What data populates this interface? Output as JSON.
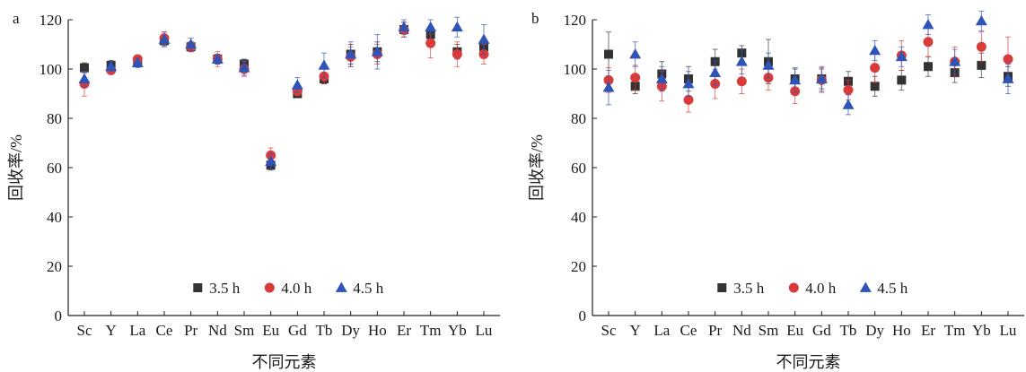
{
  "chart_data": [
    {
      "panel_label": "a",
      "type": "scatter",
      "title": "",
      "xlabel": "不同元素",
      "ylabel": "回收率/%",
      "ylim": [
        0,
        120
      ],
      "yticks": [
        0,
        20,
        40,
        60,
        80,
        100,
        120
      ],
      "legend_position": "bottom-center",
      "grid": false,
      "categories": [
        "Sc",
        "Y",
        "La",
        "Ce",
        "Pr",
        "Nd",
        "Sm",
        "Eu",
        "Gd",
        "Tb",
        "Dy",
        "Ho",
        "Er",
        "Tm",
        "Yb",
        "Lu"
      ],
      "series": [
        {
          "name": "3.5 h",
          "marker": "square",
          "color": "#333333",
          "values": [
            100.5,
            101.5,
            103,
            111.5,
            109,
            104,
            102,
            61,
            90,
            96,
            106,
            107,
            116,
            114,
            107,
            109
          ],
          "errors": [
            2,
            2,
            1.5,
            2,
            2,
            2,
            2,
            2,
            1.5,
            2,
            4,
            4,
            3,
            3,
            3,
            3
          ]
        },
        {
          "name": "4.0 h",
          "marker": "circle",
          "color": "#d93a3a",
          "values": [
            94,
            99.5,
            104,
            112.5,
            109,
            104,
            100,
            65,
            91,
            97,
            105,
            106,
            116,
            110.5,
            106,
            106
          ],
          "errors": [
            5,
            1.5,
            1.5,
            2.5,
            2,
            3,
            3,
            3,
            1.5,
            3,
            4,
            4,
            3,
            6,
            5,
            4
          ]
        },
        {
          "name": "4.5 h",
          "marker": "triangle",
          "color": "#2f54b8",
          "values": [
            96,
            101,
            102.5,
            112,
            110,
            104,
            100.5,
            62.5,
            93.5,
            101.5,
            106,
            107,
            117,
            117,
            117,
            112
          ],
          "errors": [
            3,
            2,
            2,
            3,
            2.5,
            2,
            3,
            3,
            3,
            5,
            5,
            7,
            3,
            3,
            4,
            6
          ]
        }
      ]
    },
    {
      "panel_label": "b",
      "type": "scatter",
      "title": "",
      "xlabel": "不同元素",
      "ylabel": "回收率/%",
      "ylim": [
        0,
        120
      ],
      "yticks": [
        0,
        20,
        40,
        60,
        80,
        100,
        120
      ],
      "legend_position": "bottom-center",
      "grid": false,
      "categories": [
        "Sc",
        "Y",
        "La",
        "Ce",
        "Pr",
        "Nd",
        "Sm",
        "Eu",
        "Gd",
        "Tb",
        "Dy",
        "Ho",
        "Er",
        "Tm",
        "Yb",
        "Lu"
      ],
      "series": [
        {
          "name": "3.5 h",
          "marker": "square",
          "color": "#333333",
          "values": [
            106,
            93,
            98,
            96,
            103,
            106.5,
            103,
            96,
            96,
            95,
            93,
            95.5,
            101,
            98.5,
            101.5,
            97
          ],
          "errors": [
            9,
            3,
            5,
            5,
            5,
            3,
            9,
            4,
            4,
            4,
            4,
            4,
            4,
            4,
            5,
            4
          ]
        },
        {
          "name": "4.0 h",
          "marker": "circle",
          "color": "#d93a3a",
          "values": [
            95.5,
            96.5,
            93,
            87.5,
            94,
            95,
            96.5,
            91,
            95.5,
            91.5,
            100.5,
            105.5,
            111,
            103,
            109,
            104
          ],
          "errors": [
            5,
            5,
            6,
            5,
            6,
            5,
            5,
            5,
            5,
            4,
            6,
            6,
            6,
            6,
            6,
            9
          ]
        },
        {
          "name": "4.5 h",
          "marker": "triangle",
          "color": "#2f54b8",
          "values": [
            92.5,
            106,
            96,
            94,
            98.5,
            103,
            101.5,
            95.5,
            96,
            85.5,
            107.5,
            105,
            118,
            103,
            119.5,
            96
          ],
          "errors": [
            7,
            5,
            5,
            5,
            5,
            5,
            5,
            5,
            5,
            4,
            4,
            4,
            4,
            5,
            4,
            6
          ]
        }
      ]
    }
  ]
}
